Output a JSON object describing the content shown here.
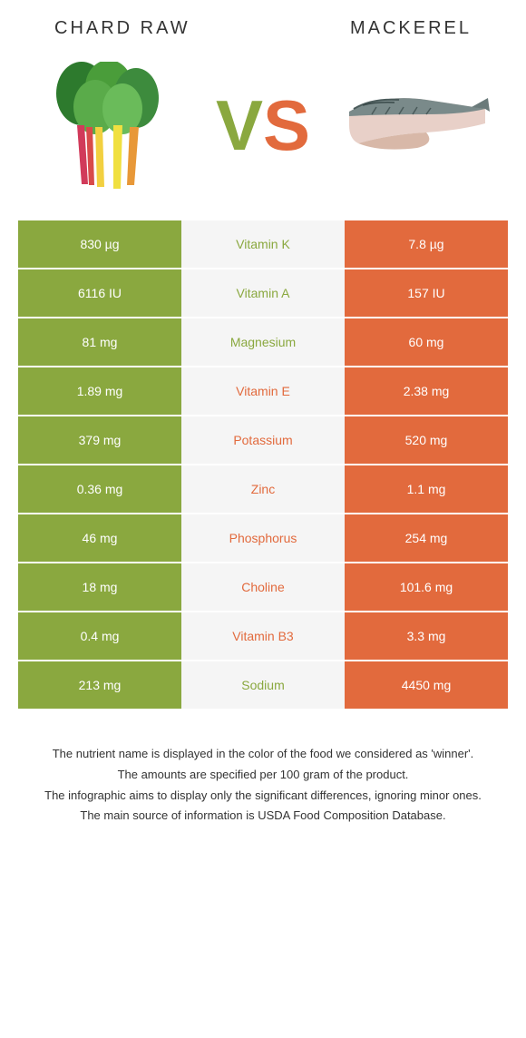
{
  "header": {
    "left_title": "chard raw",
    "right_title": "Mackerel"
  },
  "vs": {
    "v": "V",
    "s": "S"
  },
  "colors": {
    "green": "#8aa83f",
    "orange": "#e26a3d",
    "mid_bg": "#f5f5f5"
  },
  "rows": [
    {
      "left": "830 µg",
      "label": "Vitamin K",
      "right": "7.8 µg",
      "winner": "green"
    },
    {
      "left": "6116 IU",
      "label": "Vitamin A",
      "right": "157 IU",
      "winner": "green"
    },
    {
      "left": "81 mg",
      "label": "Magnesium",
      "right": "60 mg",
      "winner": "green"
    },
    {
      "left": "1.89 mg",
      "label": "Vitamin E",
      "right": "2.38 mg",
      "winner": "orange"
    },
    {
      "left": "379 mg",
      "label": "Potassium",
      "right": "520 mg",
      "winner": "orange"
    },
    {
      "left": "0.36 mg",
      "label": "Zinc",
      "right": "1.1 mg",
      "winner": "orange"
    },
    {
      "left": "46 mg",
      "label": "Phosphorus",
      "right": "254 mg",
      "winner": "orange"
    },
    {
      "left": "18 mg",
      "label": "Choline",
      "right": "101.6 mg",
      "winner": "orange"
    },
    {
      "left": "0.4 mg",
      "label": "Vitamin B3",
      "right": "3.3 mg",
      "winner": "orange"
    },
    {
      "left": "213 mg",
      "label": "Sodium",
      "right": "4450 mg",
      "winner": "green"
    }
  ],
  "footnotes": [
    "The nutrient name is displayed in the color of the food we considered as 'winner'.",
    "The amounts are specified per 100 gram of the product.",
    "The infographic aims to display only the significant differences, ignoring minor ones.",
    "The main source of information is USDA Food Composition Database."
  ]
}
